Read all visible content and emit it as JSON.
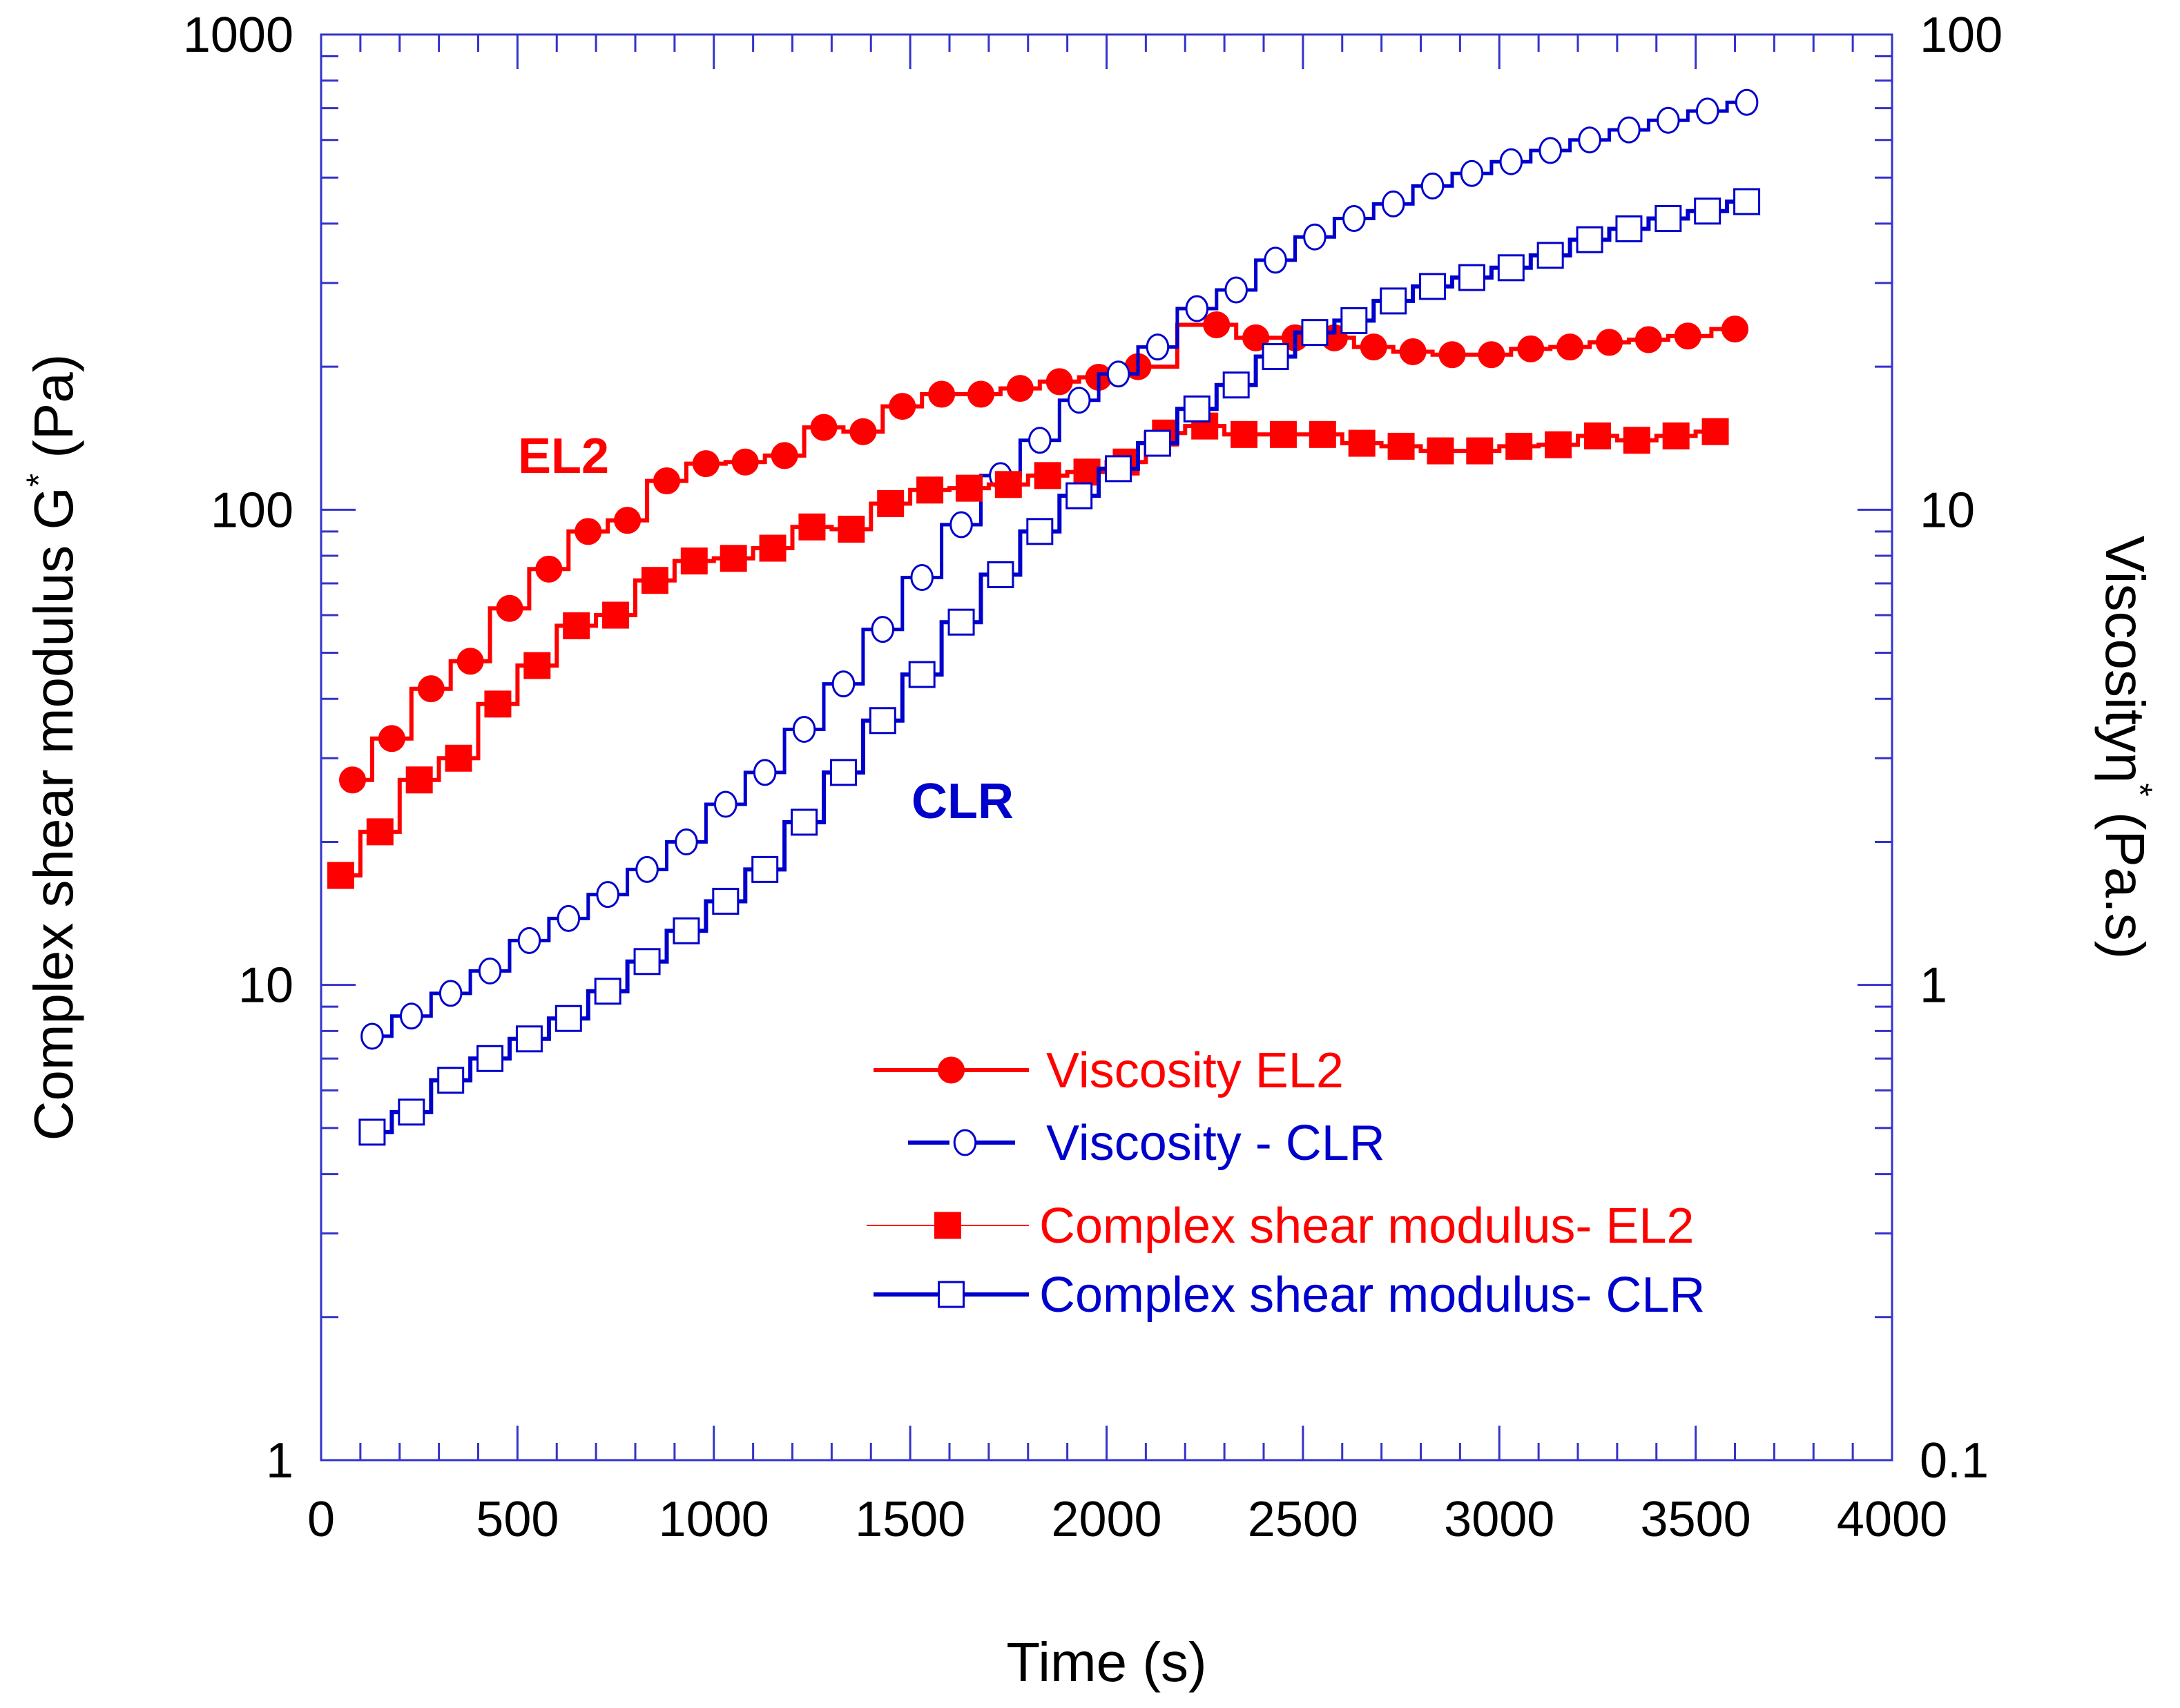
{
  "chart_data": {
    "type": "line",
    "xlabel": "Time (s)",
    "ylabel_left_text": "Complex shear modulus G",
    "ylabel_left_sup": "*",
    "ylabel_left_unit": "(Pa)",
    "ylabel_right_text": "Viscosityη",
    "ylabel_right_sup": "*",
    "ylabel_right_unit": "(Pa.s)",
    "xlim": [
      0,
      4000
    ],
    "ylim_left": [
      1,
      1000
    ],
    "ylim_right": [
      0.1,
      100
    ],
    "yscale": "log",
    "grid": false,
    "legend_position": "lower-right",
    "x_ticks": [
      "0",
      "500",
      "1000",
      "1500",
      "2000",
      "2500",
      "3000",
      "3500",
      "4000"
    ],
    "y_left_ticks": [
      "1",
      "10",
      "100",
      "1000"
    ],
    "y_right_ticks": [
      "0.1",
      "1",
      "10",
      "100"
    ],
    "annotations": [
      {
        "text": "EL2",
        "color": "#ff0000"
      },
      {
        "text": "CLR",
        "color": "#0000cc"
      }
    ],
    "colors": {
      "el2": "#ff0000",
      "clr": "#0000cc",
      "frame": "#3333cc"
    },
    "series": [
      {
        "name": "Viscosity  EL2",
        "axis": "right",
        "color": "#ff0000",
        "marker": "circle-filled",
        "x": [
          80,
          180,
          280,
          380,
          480,
          580,
          680,
          780,
          880,
          980,
          1080,
          1180,
          1280,
          1380,
          1480,
          1580,
          1680,
          1780,
          1880,
          1980,
          2080,
          2280,
          2380,
          2480,
          2580,
          2680,
          2780,
          2880,
          2980,
          3080,
          3180,
          3280,
          3380,
          3480,
          3600
        ],
        "y": [
          2.7,
          3.3,
          4.2,
          4.8,
          6.2,
          7.5,
          9.0,
          9.5,
          11.5,
          12.5,
          12.6,
          13.0,
          14.9,
          14.6,
          16.5,
          17.5,
          17.5,
          18.0,
          18.6,
          19.0,
          20.0,
          24.5,
          23.0,
          23.0,
          23.0,
          22.0,
          21.5,
          21.2,
          21.2,
          21.8,
          22.0,
          22.5,
          22.8,
          23.2,
          24.0
        ]
      },
      {
        "name": "Viscosity - CLR",
        "axis": "right",
        "color": "#0000cc",
        "marker": "circle-open",
        "x": [
          130,
          230,
          330,
          430,
          530,
          630,
          730,
          830,
          930,
          1030,
          1130,
          1230,
          1330,
          1430,
          1530,
          1630,
          1730,
          1830,
          1930,
          2030,
          2130,
          2230,
          2330,
          2430,
          2530,
          2630,
          2730,
          2830,
          2930,
          3030,
          3130,
          3230,
          3330,
          3430,
          3530,
          3630
        ],
        "y": [
          0.78,
          0.86,
          0.96,
          1.07,
          1.24,
          1.38,
          1.55,
          1.75,
          2.0,
          2.4,
          2.8,
          3.45,
          4.3,
          5.6,
          7.2,
          9.3,
          11.8,
          14.0,
          17.0,
          19.3,
          22.0,
          26.5,
          29.0,
          33.5,
          37.5,
          41.0,
          44.0,
          48.0,
          51.0,
          54.0,
          57.0,
          60.0,
          63.0,
          66.0,
          69.0,
          72.0
        ]
      },
      {
        "name": "Complex shear modulus- EL2",
        "axis": "left",
        "color": "#ff0000",
        "marker": "square-filled",
        "x": [
          50,
          150,
          250,
          350,
          450,
          550,
          650,
          750,
          850,
          950,
          1050,
          1150,
          1250,
          1350,
          1450,
          1550,
          1650,
          1750,
          1850,
          1950,
          2050,
          2150,
          2250,
          2350,
          2450,
          2550,
          2650,
          2750,
          2850,
          2950,
          3050,
          3150,
          3250,
          3350,
          3450,
          3550
        ],
        "y": [
          17,
          21,
          27,
          30,
          39,
          47,
          57,
          60,
          71,
          78,
          79,
          83,
          92,
          91,
          103,
          110,
          111,
          113,
          118,
          120,
          126,
          145,
          150,
          144,
          144,
          144,
          138,
          136,
          133,
          133,
          136,
          137,
          143,
          140,
          143,
          146
        ]
      },
      {
        "name": "Complex shear modulus- CLR",
        "axis": "left",
        "color": "#0000cc",
        "marker": "square-open",
        "x": [
          130,
          230,
          330,
          430,
          530,
          630,
          730,
          830,
          930,
          1030,
          1130,
          1230,
          1330,
          1430,
          1530,
          1630,
          1730,
          1830,
          1930,
          2030,
          2130,
          2230,
          2330,
          2430,
          2530,
          2630,
          2730,
          2830,
          2930,
          3030,
          3130,
          3230,
          3330,
          3430,
          3530,
          3630
        ],
        "y": [
          4.9,
          5.4,
          6.3,
          7.0,
          7.7,
          8.5,
          9.7,
          11.2,
          13.0,
          15.0,
          17.5,
          22.0,
          28.0,
          36.0,
          45.0,
          58.0,
          73.0,
          90.0,
          107.0,
          122.0,
          138.0,
          163.0,
          183.0,
          210.0,
          236.0,
          250.0,
          275.0,
          295.0,
          308.0,
          323.0,
          343.0,
          370.0,
          390.0,
          410.0,
          425.0,
          445.0
        ]
      }
    ]
  }
}
